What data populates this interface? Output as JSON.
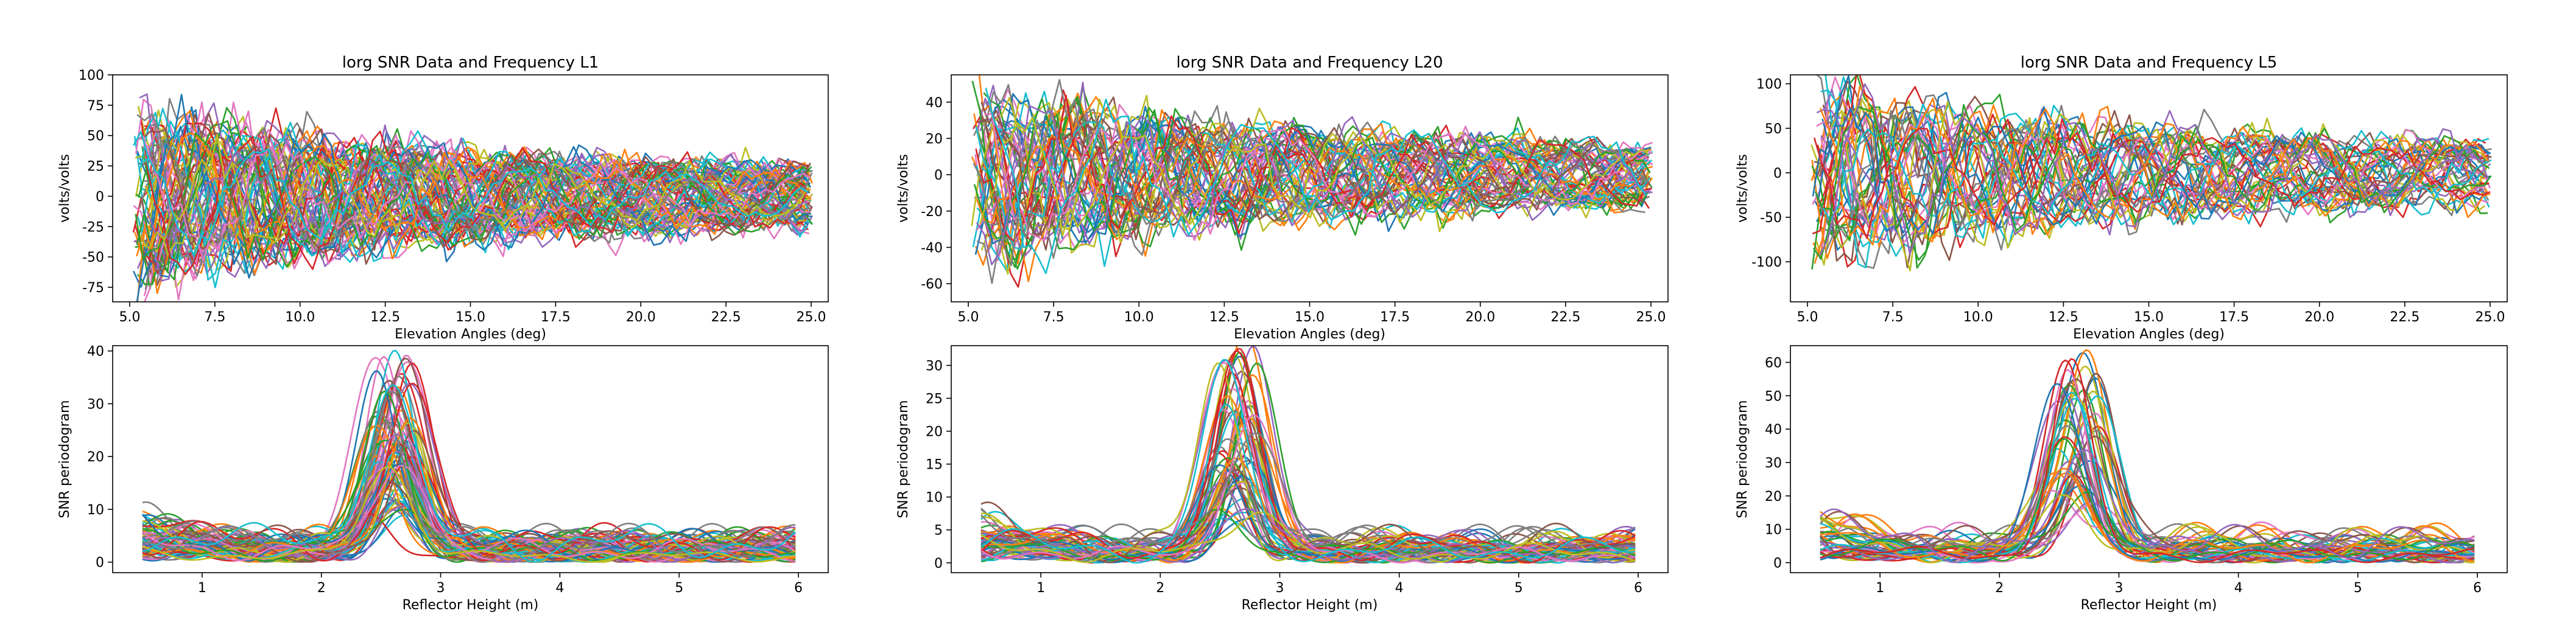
{
  "palette": [
    "#1f77b4",
    "#ff7f0e",
    "#2ca02c",
    "#d62728",
    "#9467bd",
    "#8c564b",
    "#e377c2",
    "#7f7f7f",
    "#bcbd22",
    "#17becf"
  ],
  "chart_data": [
    {
      "type": "line",
      "title": "lorg SNR Data and Frequency L1",
      "xlabel": "Elevation Angles (deg)",
      "ylabel": "volts/volts",
      "xlim": [
        4.5,
        25.5
      ],
      "ylim": [
        -87,
        100
      ],
      "xticks": [
        "5.0",
        "7.5",
        "10.0",
        "12.5",
        "15.0",
        "17.5",
        "20.0",
        "22.5",
        "25.0"
      ],
      "yticks": [
        "-75",
        "-50",
        "-25",
        "0",
        "25",
        "50",
        "75",
        "100"
      ],
      "series_count": 80,
      "approx_amplitude_range": [
        -80,
        92
      ],
      "grid": false,
      "legend": "none"
    },
    {
      "type": "line",
      "title": "lorg SNR Data and Frequency L20",
      "xlabel": "Elevation Angles (deg)",
      "ylabel": "volts/volts",
      "xlim": [
        4.5,
        25.5
      ],
      "ylim": [
        -70,
        55
      ],
      "xticks": [
        "5.0",
        "7.5",
        "10.0",
        "12.5",
        "15.0",
        "17.5",
        "20.0",
        "22.5",
        "25.0"
      ],
      "yticks": [
        "-60",
        "-40",
        "-20",
        "0",
        "20",
        "40"
      ],
      "series_count": 60,
      "approx_amplitude_range": [
        -65,
        48
      ],
      "grid": false,
      "legend": "none"
    },
    {
      "type": "line",
      "title": "lorg SNR Data and Frequency L5",
      "xlabel": "Elevation Angles (deg)",
      "ylabel": "volts/volts",
      "xlim": [
        4.5,
        25.5
      ],
      "ylim": [
        -145,
        110
      ],
      "xticks": [
        "5.0",
        "7.5",
        "10.0",
        "12.5",
        "15.0",
        "17.5",
        "20.0",
        "22.5",
        "25.0"
      ],
      "yticks": [
        "-100",
        "-50",
        "0",
        "50",
        "100"
      ],
      "series_count": 45,
      "approx_amplitude_range": [
        -135,
        100
      ],
      "grid": false,
      "legend": "none"
    },
    {
      "type": "line",
      "xlabel": "Reflector Height (m)",
      "ylabel": "SNR periodogram",
      "xlim": [
        0.25,
        6.25
      ],
      "ylim": [
        -2,
        41
      ],
      "xticks": [
        "1",
        "2",
        "3",
        "4",
        "5",
        "6"
      ],
      "yticks": [
        "0",
        "10",
        "20",
        "30",
        "40"
      ],
      "series_count": 80,
      "peak_x_approx": 2.6,
      "peak_max_approx": 38.5,
      "grid": false,
      "legend": "none"
    },
    {
      "type": "line",
      "xlabel": "Reflector Height (m)",
      "ylabel": "SNR periodogram",
      "xlim": [
        0.25,
        6.25
      ],
      "ylim": [
        -1.5,
        33
      ],
      "xticks": [
        "1",
        "2",
        "3",
        "4",
        "5",
        "6"
      ],
      "yticks": [
        "0",
        "5",
        "10",
        "15",
        "20",
        "25",
        "30"
      ],
      "series_count": 60,
      "peak_x_approx": 2.65,
      "peak_max_approx": 31.5,
      "grid": false,
      "legend": "none"
    },
    {
      "type": "line",
      "xlabel": "Reflector Height (m)",
      "ylabel": "SNR periodogram",
      "xlim": [
        0.25,
        6.25
      ],
      "ylim": [
        -3,
        65
      ],
      "xticks": [
        "1",
        "2",
        "3",
        "4",
        "5",
        "6"
      ],
      "yticks": [
        "0",
        "10",
        "20",
        "30",
        "40",
        "50",
        "60"
      ],
      "series_count": 45,
      "peak_x_approx": 2.65,
      "peak_max_approx": 62,
      "grid": false,
      "legend": "none"
    }
  ]
}
